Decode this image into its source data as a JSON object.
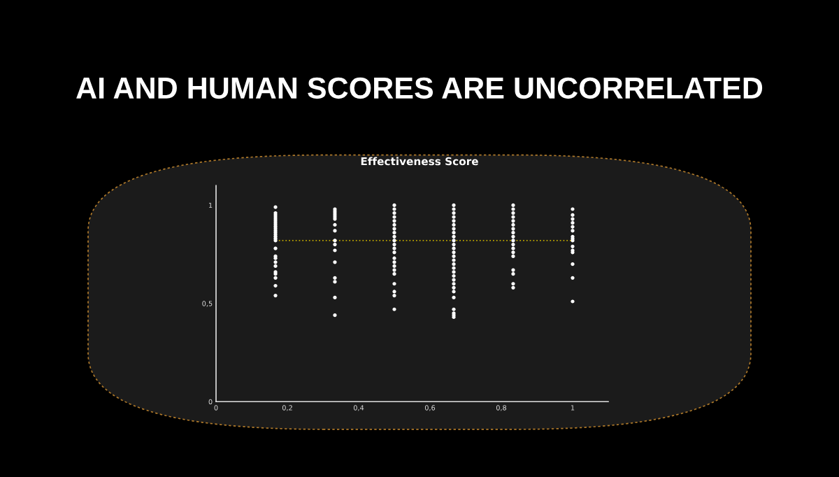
{
  "chart_data": {
    "type": "scatter",
    "title": "AI AND HUMAN SCORES ARE UNCORRELATED",
    "subtitle": "Effectiveness Score",
    "series": [
      {
        "color": "#ffffff",
        "x": [
          0.1667,
          0.1667,
          0.1667,
          0.1667,
          0.1667,
          0.1667,
          0.1667,
          0.1667,
          0.1667,
          0.1667,
          0.1667,
          0.1667,
          0.1667,
          0.1667,
          0.1667,
          0.1667,
          0.1667,
          0.1667,
          0.1667,
          0.1667,
          0.1667,
          0.1667,
          0.1667,
          0.1667,
          0.1667,
          0.1667
        ],
        "values": [
          0.99,
          0.96,
          0.95,
          0.94,
          0.93,
          0.92,
          0.91,
          0.9,
          0.89,
          0.88,
          0.87,
          0.86,
          0.85,
          0.84,
          0.83,
          0.82,
          0.78,
          0.74,
          0.73,
          0.71,
          0.69,
          0.66,
          0.65,
          0.63,
          0.59,
          0.54
        ]
      },
      {
        "color": "#ffffff",
        "x": [
          0.3333,
          0.3333,
          0.3333,
          0.3333,
          0.3333,
          0.3333,
          0.3333,
          0.3333,
          0.3333,
          0.3333,
          0.3333,
          0.3333,
          0.3333,
          0.3333,
          0.3333,
          0.3333
        ],
        "values": [
          0.98,
          0.97,
          0.96,
          0.95,
          0.94,
          0.93,
          0.9,
          0.87,
          0.82,
          0.8,
          0.77,
          0.71,
          0.63,
          0.61,
          0.53,
          0.44
        ]
      },
      {
        "color": "#ffffff",
        "x": [
          0.5,
          0.5,
          0.5,
          0.5,
          0.5,
          0.5,
          0.5,
          0.5,
          0.5,
          0.5,
          0.5,
          0.5,
          0.5,
          0.5,
          0.5,
          0.5,
          0.5,
          0.5,
          0.5,
          0.5,
          0.5,
          0.5
        ],
        "values": [
          1.0,
          0.98,
          0.96,
          0.94,
          0.92,
          0.9,
          0.88,
          0.86,
          0.84,
          0.82,
          0.8,
          0.78,
          0.76,
          0.73,
          0.71,
          0.69,
          0.67,
          0.65,
          0.6,
          0.56,
          0.54,
          0.47
        ]
      },
      {
        "color": "#ffffff",
        "x": [
          0.6667,
          0.6667,
          0.6667,
          0.6667,
          0.6667,
          0.6667,
          0.6667,
          0.6667,
          0.6667,
          0.6667,
          0.6667,
          0.6667,
          0.6667,
          0.6667,
          0.6667,
          0.6667,
          0.6667,
          0.6667,
          0.6667,
          0.6667,
          0.6667,
          0.6667,
          0.6667,
          0.6667,
          0.6667,
          0.6667,
          0.6667,
          0.6667
        ],
        "values": [
          1.0,
          0.98,
          0.96,
          0.94,
          0.92,
          0.9,
          0.88,
          0.86,
          0.84,
          0.82,
          0.8,
          0.78,
          0.76,
          0.74,
          0.72,
          0.7,
          0.68,
          0.66,
          0.64,
          0.62,
          0.6,
          0.58,
          0.56,
          0.53,
          0.47,
          0.45,
          0.44,
          0.43
        ]
      },
      {
        "color": "#ffffff",
        "x": [
          0.8333,
          0.8333,
          0.8333,
          0.8333,
          0.8333,
          0.8333,
          0.8333,
          0.8333,
          0.8333,
          0.8333,
          0.8333,
          0.8333,
          0.8333,
          0.8333,
          0.8333,
          0.8333,
          0.8333,
          0.8333
        ],
        "values": [
          1.0,
          0.98,
          0.96,
          0.94,
          0.92,
          0.9,
          0.88,
          0.86,
          0.84,
          0.82,
          0.8,
          0.78,
          0.76,
          0.74,
          0.67,
          0.65,
          0.6,
          0.58
        ]
      },
      {
        "color": "#ffffff",
        "x": [
          1,
          1,
          1,
          1,
          1,
          1,
          1,
          1,
          1,
          1,
          1,
          1,
          1,
          1,
          1
        ],
        "values": [
          0.98,
          0.95,
          0.93,
          0.91,
          0.89,
          0.87,
          0.84,
          0.83,
          0.82,
          0.79,
          0.77,
          0.76,
          0.7,
          0.63,
          0.51
        ]
      }
    ],
    "ref_lines": [
      {
        "axis": "y",
        "value": 0.82,
        "color": "#b8a000",
        "line_style": "dotted"
      }
    ],
    "xlim": [
      0,
      1.1
    ],
    "xticks": [
      0,
      {
        "value": 0.2,
        "label": "0,2"
      },
      {
        "value": 0.4,
        "label": "0,4"
      },
      {
        "value": 0.6,
        "label": "0,6"
      },
      {
        "value": 0.8,
        "label": "0,8"
      },
      1
    ],
    "ylim": [
      0,
      1.1
    ],
    "yticks": [
      0,
      {
        "value": 0.5,
        "label": "0,5"
      },
      1
    ],
    "marker": "circle",
    "grid": false,
    "legend": false
  }
}
